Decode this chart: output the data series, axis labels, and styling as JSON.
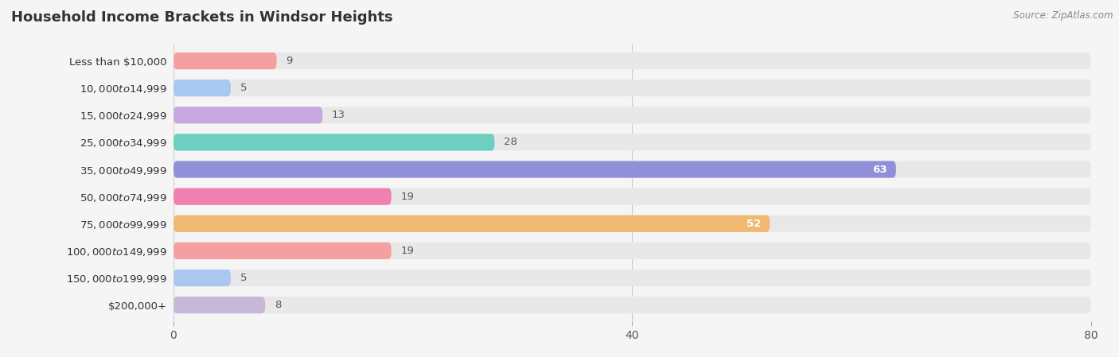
{
  "title": "Household Income Brackets in Windsor Heights",
  "source": "Source: ZipAtlas.com",
  "categories": [
    "Less than $10,000",
    "$10,000 to $14,999",
    "$15,000 to $24,999",
    "$25,000 to $34,999",
    "$35,000 to $49,999",
    "$50,000 to $74,999",
    "$75,000 to $99,999",
    "$100,000 to $149,999",
    "$150,000 to $199,999",
    "$200,000+"
  ],
  "values": [
    9,
    5,
    13,
    28,
    63,
    19,
    52,
    19,
    5,
    8
  ],
  "bar_colors": [
    "#F4A0A0",
    "#A8C8F0",
    "#C8A8E0",
    "#6DCFBF",
    "#9090D8",
    "#F080B0",
    "#F0B870",
    "#F4A0A0",
    "#A8C8F0",
    "#C8B8D8"
  ],
  "label_colors": [
    "#555555",
    "#555555",
    "#555555",
    "#555555",
    "#ffffff",
    "#555555",
    "#ffffff",
    "#555555",
    "#555555",
    "#555555"
  ],
  "xlim": [
    0,
    80
  ],
  "xticks": [
    0,
    40,
    80
  ],
  "background_color": "#f5f5f5",
  "bar_bg_color": "#e8e8e8",
  "title_fontsize": 13,
  "label_fontsize": 9.5,
  "tick_fontsize": 10,
  "category_fontsize": 9.5,
  "bar_height": 0.62
}
